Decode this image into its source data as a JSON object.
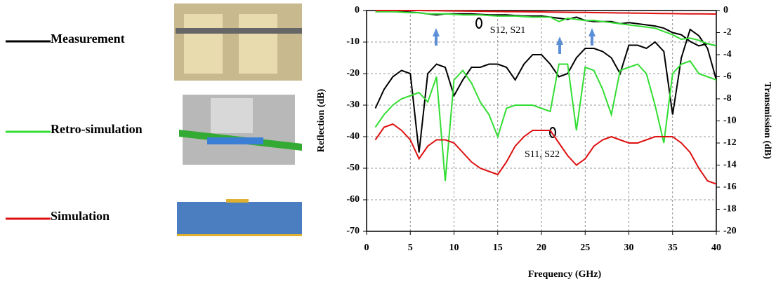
{
  "chart_data": {
    "type": "line",
    "x_label": "Frequency (GHz)",
    "y_label": "Reflection (dB)",
    "y2_label": "Transmission (dB)",
    "annotations": [
      "S12, S21",
      "S11, S22"
    ],
    "x": [
      1,
      2,
      3,
      4,
      5,
      6,
      7,
      8,
      9,
      10,
      11,
      12,
      13,
      14,
      15,
      16,
      17,
      18,
      19,
      20,
      21,
      22,
      23,
      24,
      25,
      26,
      27,
      28,
      29,
      30,
      31,
      32,
      33,
      34,
      35,
      36,
      37,
      38,
      39,
      40
    ],
    "xlim": [
      0,
      40
    ],
    "xticks": [
      0,
      5,
      10,
      15,
      20,
      25,
      30,
      35,
      40
    ],
    "ylim": [
      -70,
      0
    ],
    "yticks": [
      -70,
      -60,
      -50,
      -40,
      -30,
      -20,
      -10,
      0
    ],
    "y2lim": [
      -20,
      0
    ],
    "y2ticks": [
      -20,
      -18,
      -16,
      -14,
      -12,
      -10,
      -8,
      -6,
      -4,
      -2,
      0
    ],
    "grid": true,
    "series": [
      {
        "name": "Measurement",
        "color": "#000000",
        "values": [
          -31,
          -25,
          -21,
          -19,
          -20,
          -45,
          -20,
          -17,
          -18,
          -27,
          -22,
          -18,
          -18,
          -17,
          -17,
          -18,
          -22,
          -17,
          -14,
          -14,
          -17,
          -21,
          -20,
          -15,
          -12,
          -12,
          -13,
          -15,
          -20,
          -11,
          -11,
          -12,
          -10,
          -13,
          -33,
          -15,
          -6,
          -8,
          -12,
          -22
        ]
      },
      {
        "name": "Retro-simulation",
        "color": "#33dd33",
        "values": [
          -37,
          -33,
          -30,
          -28,
          -27,
          -26,
          -29,
          -21,
          -54,
          -22,
          -19,
          -23,
          -29,
          -33,
          -40,
          -31,
          -30,
          -30,
          -30,
          -31,
          -32,
          -17,
          -17,
          -38,
          -18,
          -19,
          -25,
          -33,
          -19,
          -18,
          -17,
          -20,
          -30,
          -42,
          -20,
          -17,
          -16,
          -20,
          -21,
          -22
        ]
      },
      {
        "name": "Simulation",
        "color": "#dd1111",
        "values": [
          -41,
          -37,
          -36,
          -38,
          -41,
          -47,
          -43,
          -41,
          -41,
          -42,
          -45,
          -48,
          -50,
          -51,
          -52,
          -48,
          -43,
          -40,
          -38,
          -38,
          -38,
          -42,
          -46,
          -49,
          -47,
          -43,
          -41,
          -40,
          -41,
          -42,
          -42,
          -41,
          -40,
          -40,
          -40,
          -42,
          -45,
          -50,
          -54,
          -55
        ]
      },
      {
        "color": "#000000",
        "axis": "y2",
        "values": [
          -0.1,
          -0.1,
          -0.1,
          -0.1,
          -0.15,
          -0.2,
          -0.3,
          -0.4,
          -0.3,
          -0.3,
          -0.3,
          -0.3,
          -0.35,
          -0.4,
          -0.4,
          -0.4,
          -0.45,
          -0.5,
          -0.5,
          -0.5,
          -0.6,
          -0.7,
          -0.8,
          -0.6,
          -0.9,
          -1.0,
          -1.0,
          -1.0,
          -1.2,
          -1.1,
          -1.2,
          -1.3,
          -1.4,
          -1.6,
          -2.0,
          -2.2,
          -2.8,
          -3.2,
          -3.0,
          -3.2
        ]
      },
      {
        "color": "#33dd33",
        "axis": "y2",
        "values": [
          -0.1,
          -0.1,
          -0.1,
          -0.15,
          -0.2,
          -0.2,
          -0.3,
          -0.3,
          -0.3,
          -0.35,
          -0.4,
          -0.4,
          -0.4,
          -0.45,
          -0.5,
          -0.5,
          -0.5,
          -0.55,
          -0.6,
          -0.6,
          -0.6,
          -1.0,
          -0.7,
          -0.8,
          -0.9,
          -0.9,
          -1.0,
          -1.1,
          -1.2,
          -1.3,
          -1.4,
          -1.5,
          -1.6,
          -1.9,
          -2.2,
          -2.6,
          -2.5,
          -2.7,
          -3.0,
          -3.2
        ]
      },
      {
        "color": "#dd1111",
        "axis": "y2",
        "values": [
          0,
          0,
          0,
          0,
          0,
          0,
          -0.01,
          -0.02,
          -0.03,
          -0.04,
          -0.05,
          -0.06,
          -0.07,
          -0.08,
          -0.09,
          -0.1,
          -0.1,
          -0.11,
          -0.12,
          -0.13,
          -0.14,
          -0.15,
          -0.16,
          -0.17,
          -0.18,
          -0.19,
          -0.2,
          -0.21,
          -0.22,
          -0.23,
          -0.24,
          -0.25,
          -0.26,
          -0.27,
          -0.28,
          -0.29,
          -0.3,
          -0.3,
          -0.31,
          -0.32
        ]
      }
    ]
  }
}
